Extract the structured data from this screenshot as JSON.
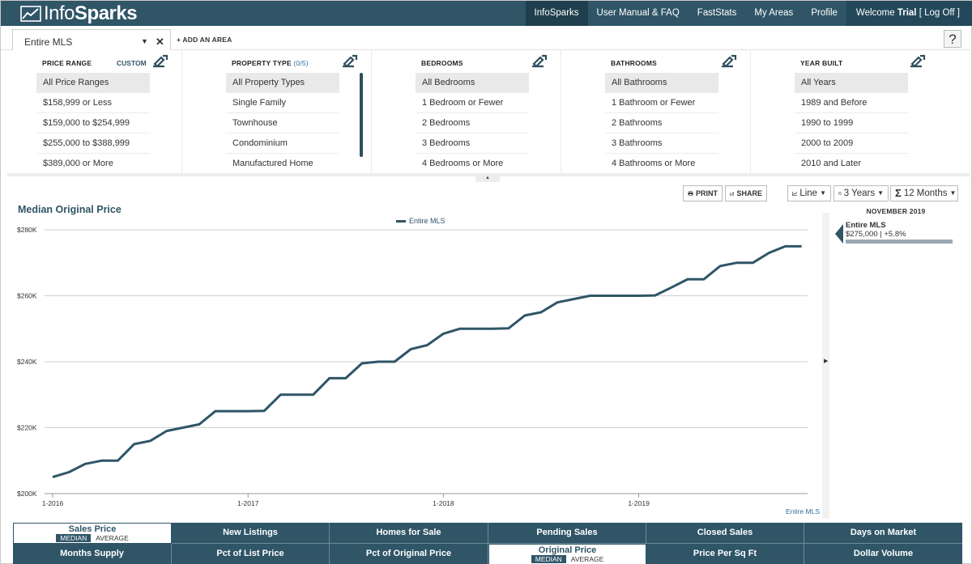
{
  "nav": {
    "logo": {
      "light": "Info",
      "bold": "Sparks"
    },
    "links": [
      "InfoSparks",
      "User Manual & FAQ",
      "FastStats",
      "My Areas",
      "Profile"
    ],
    "welcome_prefix": "Welcome",
    "welcome_user": "Trial",
    "welcome_suffix": "[ Log Off ]"
  },
  "area": {
    "selected": "Entire MLS",
    "add_label": "+ ADD AN AREA",
    "help_label": "?"
  },
  "filters": {
    "price": {
      "title": "PRICE RANGE",
      "custom_label": "CUSTOM",
      "options": [
        "All Price Ranges",
        "$158,999 or Less",
        "$159,000 to $254,999",
        "$255,000 to $388,999",
        "$389,000 or More"
      ]
    },
    "property": {
      "title": "PROPERTY TYPE",
      "count": "(0/5)",
      "options": [
        "All Property Types",
        "Single Family",
        "Townhouse",
        "Condominium",
        "Manufactured Home"
      ]
    },
    "bedrooms": {
      "title": "BEDROOMS",
      "options": [
        "All Bedrooms",
        "1 Bedroom or Fewer",
        "2 Bedrooms",
        "3 Bedrooms",
        "4 Bedrooms or More"
      ]
    },
    "bathrooms": {
      "title": "BATHROOMS",
      "options": [
        "All Bathrooms",
        "1 Bathroom or Fewer",
        "2 Bathrooms",
        "3 Bathrooms",
        "4 Bathrooms or More"
      ]
    },
    "year": {
      "title": "YEAR BUILT",
      "options": [
        "All Years",
        "1989 and Before",
        "1990 to 1999",
        "2000 to 2009",
        "2010 and Later"
      ]
    }
  },
  "toolbar": {
    "print": "PRINT",
    "share": "SHARE",
    "chart_type": "Line",
    "range": "3 Years",
    "rollup": "12 Months"
  },
  "chart_data": {
    "type": "line",
    "title": "Median Original Price",
    "xlabel": "",
    "ylabel": "",
    "ylim": [
      200000,
      280000
    ],
    "yticks": [
      200000,
      220000,
      240000,
      260000,
      280000
    ],
    "ytick_labels": [
      "$200K",
      "$220K",
      "$240K",
      "$260K",
      "$280K"
    ],
    "xtick_labels": [
      "1-2016",
      "1-2017",
      "1-2018",
      "1-2019"
    ],
    "x_start": "1-2016",
    "x_end": "11-2019",
    "grid": true,
    "legend_position": "top-center",
    "footer_label": "Entire MLS",
    "series": [
      {
        "name": "Entire MLS",
        "color": "#2f5567",
        "values": [
          205000,
          206500,
          209000,
          210000,
          210000,
          215000,
          216000,
          219000,
          220000,
          221000,
          225000,
          225000,
          225000,
          225100,
          230000,
          230000,
          230000,
          235000,
          235000,
          239500,
          240000,
          240000,
          243800,
          245000,
          248500,
          250000,
          250000,
          250000,
          250100,
          254000,
          255000,
          258000,
          259000,
          260000,
          260000,
          260000,
          260000,
          260100,
          262500,
          265000,
          265000,
          269000,
          270000,
          270000,
          273000,
          275000,
          275000
        ]
      }
    ]
  },
  "side_panel": {
    "date": "NOVEMBER 2019",
    "area": "Entire MLS",
    "value": "$275,000 | +5.8%",
    "bar_fraction": 1.0
  },
  "tabs": {
    "row1": [
      "Sales Price",
      "New Listings",
      "Homes for Sale",
      "Pending Sales",
      "Closed Sales",
      "Days on Market"
    ],
    "row2": [
      "Months Supply",
      "Pct of List Price",
      "Pct of Original Price",
      "Original Price",
      "Price Per Sq Ft",
      "Dollar Volume"
    ],
    "sub_median": "MEDIAN",
    "sub_average": "AVERAGE"
  },
  "colors": {
    "primary": "#2f5567",
    "grid": "#cfcfcf",
    "selected_option": "#e9e9e9"
  }
}
